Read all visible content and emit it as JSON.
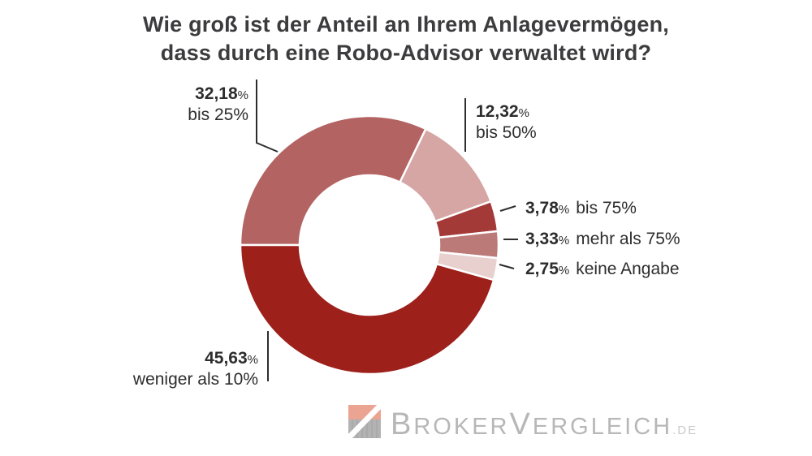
{
  "title": {
    "line1": "Wie groß ist der Anteil an Ihrem Anlagevermögen,",
    "line2": "dass durch eine Robo-Advisor verwaltet wird?"
  },
  "chart_data": {
    "type": "pie",
    "variant": "donut",
    "title": "Wie groß ist der Anteil an Ihrem Anlagevermögen, dass durch eine Robo-Advisor verwaltet wird?",
    "unit": "%",
    "start_angle_deg": 270,
    "direction": "clockwise",
    "legend_position": "callout-labels",
    "segments": [
      {
        "label": "bis 25%",
        "value": 32.18,
        "value_display": "32,18",
        "color": "#b26362"
      },
      {
        "label": "bis 50%",
        "value": 12.32,
        "value_display": "12,32",
        "color": "#d5a6a4"
      },
      {
        "label": "bis 75%",
        "value": 3.78,
        "value_display": "3,78",
        "color": "#a43a37"
      },
      {
        "label": "mehr als 75%",
        "value": 3.33,
        "value_display": "3,33",
        "color": "#bb7a78"
      },
      {
        "label": "keine Angabe",
        "value": 2.75,
        "value_display": "2,75",
        "color": "#e7d0ce"
      },
      {
        "label": "weniger als 10%",
        "value": 45.63,
        "value_display": "45,63",
        "color": "#9d201b"
      }
    ]
  },
  "logo": {
    "name": "BrokerVergleich.de",
    "icon_salmon": "#eca492",
    "icon_gray": "#b3b3b3",
    "text_parts": [
      {
        "text": "B",
        "style": "large"
      },
      {
        "text": "ROKER",
        "style": "small"
      },
      {
        "text": "V",
        "style": "large"
      },
      {
        "text": "ERGLEICH",
        "style": "small"
      },
      {
        "text": ".DE",
        "style": "tld"
      }
    ]
  }
}
